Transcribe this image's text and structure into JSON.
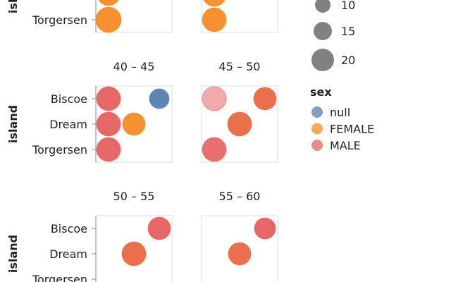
{
  "chart_data": {
    "type": "scatter",
    "y_field": "island",
    "y_categories": [
      "Biscoe",
      "Dream",
      "Torgersen"
    ],
    "panels": [
      {
        "title": "",
        "points": [
          {
            "island": "Dream",
            "x": 0.5,
            "sex": "FEMALE",
            "size": 16
          },
          {
            "island": "Torgersen",
            "x": 0.5,
            "sex": "FEMALE",
            "size": 18
          }
        ]
      },
      {
        "title": "",
        "points": [
          {
            "island": "Dream",
            "x": 0.5,
            "sex": "FEMALE",
            "size": 17
          },
          {
            "island": "Torgersen",
            "x": 0.5,
            "sex": "FEMALE",
            "size": 17
          }
        ]
      },
      {
        "title": "40 – 45",
        "points": [
          {
            "island": "Biscoe",
            "x": 0.5,
            "sex": "MALE",
            "size": 17
          },
          {
            "island": "Biscoe",
            "x": 2.5,
            "sex": "null",
            "size": 14
          },
          {
            "island": "Dream",
            "x": 0.5,
            "sex": "MALE",
            "size": 17
          },
          {
            "island": "Dream",
            "x": 1.5,
            "sex": "FEMALE",
            "size": 16
          },
          {
            "island": "Torgersen",
            "x": 0.5,
            "sex": "MALE",
            "size": 17
          }
        ]
      },
      {
        "title": "45 – 50",
        "points": [
          {
            "island": "Biscoe",
            "x": 0.5,
            "sex": "MALE",
            "size": 17,
            "opacity": 0.5
          },
          {
            "island": "Biscoe",
            "x": 2.5,
            "sex": "MALE",
            "size": 16,
            "blend": true
          },
          {
            "island": "Dream",
            "x": 1.5,
            "sex": "MALE",
            "size": 17,
            "blend": true
          },
          {
            "island": "Torgersen",
            "x": 0.5,
            "sex": "MALE",
            "size": 17,
            "opacity": 0.85
          }
        ]
      },
      {
        "title": "50 – 55",
        "points": [
          {
            "island": "Biscoe",
            "x": 2.5,
            "sex": "MALE",
            "size": 16
          },
          {
            "island": "Dream",
            "x": 1.5,
            "sex": "FEMALE",
            "size": 17,
            "blend": true
          }
        ]
      },
      {
        "title": "55 – 60",
        "points": [
          {
            "island": "Biscoe",
            "x": 2.5,
            "sex": "MALE",
            "size": 15
          },
          {
            "island": "Dream",
            "x": 1.5,
            "sex": "MALE",
            "size": 16,
            "blend": true
          }
        ]
      }
    ],
    "legend_size": {
      "values": [
        10,
        15,
        20
      ]
    },
    "legend_color": {
      "title": "sex",
      "entries": [
        {
          "label": "null",
          "color": "#4c78a8"
        },
        {
          "label": "FEMALE",
          "color": "#f58518"
        },
        {
          "label": "MALE",
          "color": "#e45756"
        }
      ]
    },
    "grid": false
  }
}
